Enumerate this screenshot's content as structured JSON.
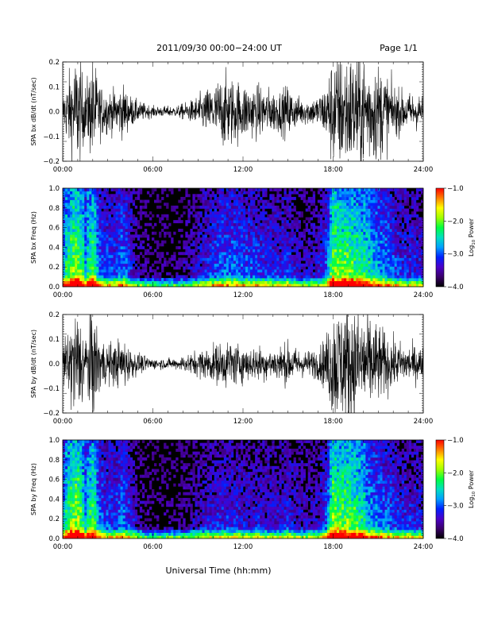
{
  "header": {
    "title": "2011/09/30  00:00−24:00 UT",
    "page": "Page 1/1"
  },
  "xaxis": {
    "label": "Universal Time (hh:mm)",
    "ticks": [
      "00:00",
      "06:00",
      "12:00",
      "18:00",
      "24:00"
    ],
    "range_hours": [
      0,
      24
    ]
  },
  "colorbar": {
    "label_prefix": "Log",
    "label_sub": "10",
    "label_suffix": " Power",
    "ticks": [
      "−1.0",
      "−2.0",
      "−3.0",
      "−4.0"
    ],
    "range": [
      -4.0,
      -1.0
    ],
    "colormap": [
      "#000000",
      "#3a006a",
      "#4a00c8",
      "#0020ff",
      "#00a0ff",
      "#00e0c0",
      "#00ff40",
      "#a0ff00",
      "#ffff00",
      "#ff8000",
      "#ff0000"
    ]
  },
  "chart_data": [
    {
      "type": "line",
      "ylabel": "SPA bx dB/dt (nT/sec)",
      "ylim": [
        -0.2,
        0.2
      ],
      "yticks": [
        "0.2",
        "0.1",
        "0.0",
        "−0.1",
        "−0.2"
      ],
      "x_hours": [
        0,
        0.5,
        1,
        1.5,
        2,
        2.5,
        3,
        3.5,
        4,
        4.5,
        5,
        5.5,
        6,
        6.5,
        7,
        7.5,
        8,
        8.5,
        9,
        9.5,
        10,
        10.5,
        11,
        11.5,
        12,
        12.5,
        13,
        13.5,
        14,
        14.5,
        15,
        15.5,
        16,
        16.5,
        17,
        17.5,
        18,
        18.5,
        19,
        19.5,
        20,
        20.5,
        21,
        21.5,
        22,
        22.5,
        23,
        23.5,
        24
      ],
      "amplitude": [
        0.06,
        0.16,
        0.22,
        0.1,
        0.2,
        0.1,
        0.08,
        0.08,
        0.1,
        0.06,
        0.04,
        0.03,
        0.02,
        0.02,
        0.02,
        0.02,
        0.03,
        0.04,
        0.06,
        0.08,
        0.1,
        0.13,
        0.14,
        0.12,
        0.11,
        0.1,
        0.1,
        0.09,
        0.08,
        0.08,
        0.1,
        0.06,
        0.05,
        0.05,
        0.06,
        0.1,
        0.22,
        0.22,
        0.22,
        0.22,
        0.22,
        0.2,
        0.18,
        0.15,
        0.1,
        0.08,
        0.07,
        0.07,
        0.06
      ]
    },
    {
      "type": "heatmap",
      "ylabel": "SPA bx Freq (Hz)",
      "ylim": [
        0.0,
        1.0
      ],
      "yticks": [
        "1.0",
        "0.8",
        "0.6",
        "0.4",
        "0.2",
        "0.0"
      ],
      "x_hours": [
        0,
        0.5,
        1,
        1.5,
        2,
        2.5,
        3,
        3.5,
        4,
        4.5,
        5,
        5.5,
        6,
        6.5,
        7,
        7.5,
        8,
        8.5,
        9,
        9.5,
        10,
        10.5,
        11,
        11.5,
        12,
        12.5,
        13,
        13.5,
        14,
        14.5,
        15,
        15.5,
        16,
        16.5,
        17,
        17.5,
        18,
        18.5,
        19,
        19.5,
        20,
        20.5,
        21,
        21.5,
        22,
        22.5,
        23,
        23.5,
        24
      ],
      "intensity": [
        0.5,
        0.7,
        0.8,
        0.5,
        0.7,
        0.4,
        0.35,
        0.35,
        0.45,
        0.3,
        0.2,
        0.15,
        0.12,
        0.12,
        0.12,
        0.12,
        0.15,
        0.2,
        0.25,
        0.3,
        0.35,
        0.4,
        0.42,
        0.4,
        0.38,
        0.36,
        0.35,
        0.33,
        0.3,
        0.3,
        0.35,
        0.25,
        0.22,
        0.22,
        0.25,
        0.35,
        0.75,
        0.7,
        0.7,
        0.65,
        0.6,
        0.55,
        0.5,
        0.45,
        0.38,
        0.32,
        0.3,
        0.3,
        0.28
      ]
    },
    {
      "type": "line",
      "ylabel": "SPA by dB/dt (nT/sec)",
      "ylim": [
        -0.2,
        0.2
      ],
      "yticks": [
        "0.2",
        "0.1",
        "0.0",
        "−0.1",
        "−0.2"
      ],
      "x_hours": [
        0,
        0.5,
        1,
        1.5,
        2,
        2.5,
        3,
        3.5,
        4,
        4.5,
        5,
        5.5,
        6,
        6.5,
        7,
        7.5,
        8,
        8.5,
        9,
        9.5,
        10,
        10.5,
        11,
        11.5,
        12,
        12.5,
        13,
        13.5,
        14,
        14.5,
        15,
        15.5,
        16,
        16.5,
        17,
        17.5,
        18,
        18.5,
        19,
        19.5,
        20,
        20.5,
        21,
        21.5,
        22,
        22.5,
        23,
        23.5,
        24
      ],
      "amplitude": [
        0.06,
        0.16,
        0.22,
        0.12,
        0.22,
        0.1,
        0.08,
        0.08,
        0.1,
        0.06,
        0.04,
        0.03,
        0.02,
        0.02,
        0.02,
        0.02,
        0.03,
        0.04,
        0.05,
        0.06,
        0.07,
        0.08,
        0.09,
        0.08,
        0.07,
        0.06,
        0.07,
        0.06,
        0.06,
        0.07,
        0.08,
        0.06,
        0.05,
        0.05,
        0.06,
        0.1,
        0.22,
        0.22,
        0.22,
        0.22,
        0.2,
        0.18,
        0.15,
        0.12,
        0.09,
        0.08,
        0.07,
        0.07,
        0.06
      ]
    },
    {
      "type": "heatmap",
      "ylabel": "SPA by Freq (Hz)",
      "ylim": [
        0.0,
        1.0
      ],
      "yticks": [
        "1.0",
        "0.8",
        "0.6",
        "0.4",
        "0.2",
        "0.0"
      ],
      "x_hours": [
        0,
        0.5,
        1,
        1.5,
        2,
        2.5,
        3,
        3.5,
        4,
        4.5,
        5,
        5.5,
        6,
        6.5,
        7,
        7.5,
        8,
        8.5,
        9,
        9.5,
        10,
        10.5,
        11,
        11.5,
        12,
        12.5,
        13,
        13.5,
        14,
        14.5,
        15,
        15.5,
        16,
        16.5,
        17,
        17.5,
        18,
        18.5,
        19,
        19.5,
        20,
        20.5,
        21,
        21.5,
        22,
        22.5,
        23,
        23.5,
        24
      ],
      "intensity": [
        0.5,
        0.7,
        0.8,
        0.5,
        0.7,
        0.4,
        0.35,
        0.35,
        0.45,
        0.3,
        0.2,
        0.15,
        0.12,
        0.12,
        0.12,
        0.12,
        0.15,
        0.2,
        0.22,
        0.25,
        0.28,
        0.3,
        0.32,
        0.3,
        0.28,
        0.26,
        0.28,
        0.26,
        0.25,
        0.27,
        0.3,
        0.25,
        0.22,
        0.22,
        0.25,
        0.35,
        0.75,
        0.7,
        0.7,
        0.65,
        0.58,
        0.5,
        0.45,
        0.4,
        0.35,
        0.32,
        0.3,
        0.3,
        0.28
      ]
    }
  ]
}
